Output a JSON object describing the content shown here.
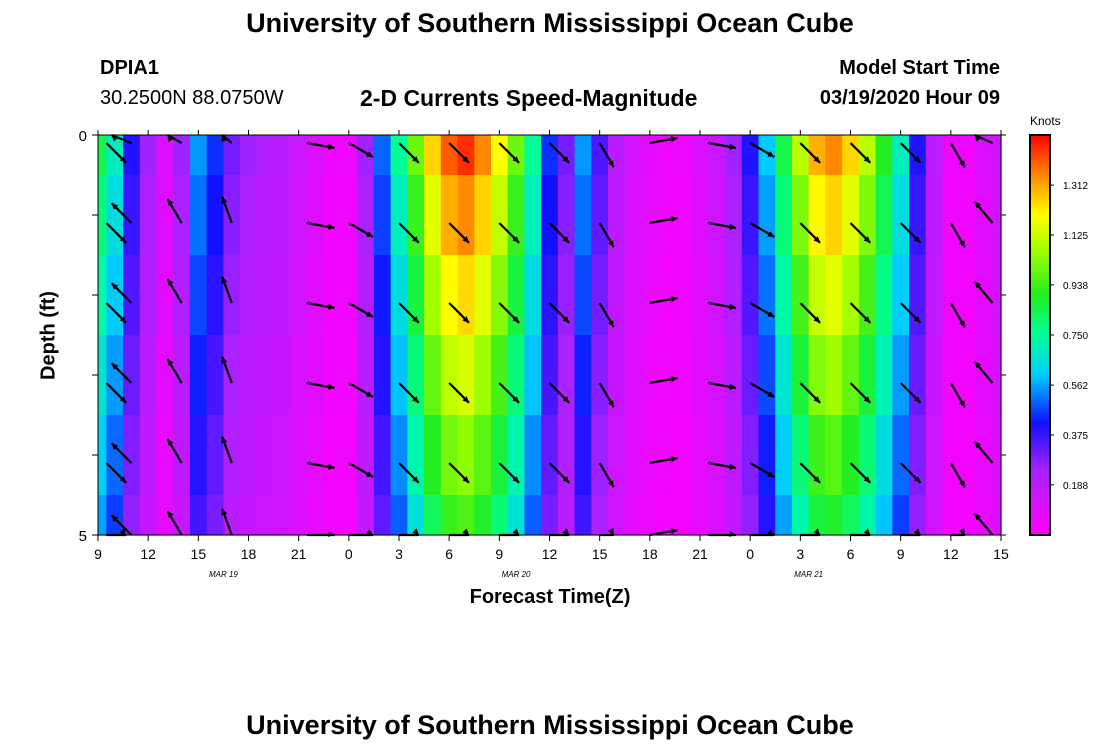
{
  "header": {
    "title": "University of Southern Mississippi Ocean Cube",
    "station": "DPIA1",
    "location": "30.2500N 88.0750W",
    "subtitle": "2-D Currents Speed-Magnitude",
    "model_start_label": "Model Start Time",
    "model_start_value": "03/19/2020 Hour 09"
  },
  "footer": {
    "title": "University of Southern Mississippi Ocean Cube"
  },
  "chart_data": {
    "type": "heatmap",
    "xlabel": "Forecast Time(Z)",
    "ylabel": "Depth (ft)",
    "colorbar_label": "Knots",
    "x_tick_labels": [
      "9",
      "12",
      "15",
      "18",
      "21",
      "0",
      "3",
      "6",
      "9",
      "12",
      "15",
      "18",
      "21",
      "0",
      "3",
      "6",
      "9",
      "12",
      "15"
    ],
    "date_labels": [
      {
        "text": "MAR 19",
        "hour_index": 7.5
      },
      {
        "text": "MAR 20",
        "hour_index": 25
      },
      {
        "text": "MAR 21",
        "hour_index": 42.5
      }
    ],
    "x_range_hours": [
      9,
      63
    ],
    "y_tick_labels": [
      "0",
      "5"
    ],
    "ylim": [
      0,
      5
    ],
    "depth_levels_ft": [
      0.25,
      1.25,
      2.25,
      3.25,
      4.25,
      4.75
    ],
    "colorbar_ticks": [
      "0.188",
      "0.375",
      "0.562",
      "0.750",
      "0.938",
      "1.125",
      "1.312"
    ],
    "colorbar_range": [
      0,
      1.5
    ],
    "speed_profile": {
      "hours": [
        9,
        10,
        11,
        12,
        13,
        14,
        15,
        16,
        17,
        18,
        19,
        20,
        21,
        22,
        23,
        24,
        25,
        26,
        27,
        28,
        29,
        30,
        31,
        32,
        33,
        34,
        35,
        36,
        37,
        38,
        39,
        40,
        41,
        42,
        43,
        44,
        45,
        46,
        47,
        48,
        49,
        50,
        51,
        52,
        53,
        54,
        55,
        56,
        57,
        58,
        59,
        60,
        61,
        62,
        63
      ],
      "speed_knots": [
        0.85,
        0.7,
        0.4,
        0.25,
        0.1,
        0.25,
        0.55,
        0.45,
        0.3,
        0.25,
        0.22,
        0.2,
        0.15,
        0.1,
        0.05,
        0.05,
        0.25,
        0.5,
        0.75,
        1.0,
        1.25,
        1.4,
        1.45,
        1.35,
        1.2,
        1.0,
        0.75,
        0.45,
        0.3,
        0.55,
        0.35,
        0.2,
        0.12,
        0.08,
        0.05,
        0.05,
        0.1,
        0.15,
        0.25,
        0.4,
        0.6,
        0.85,
        1.1,
        1.3,
        1.35,
        1.25,
        1.1,
        0.9,
        0.7,
        0.4,
        0.2,
        0.05,
        0.05,
        0.1,
        0.15
      ],
      "depth_factor": [
        1.0,
        0.93,
        0.86,
        0.79,
        0.72,
        0.66
      ]
    },
    "arrows": {
      "hours": [
        9.5,
        11,
        14,
        17,
        21.5,
        24,
        27,
        30,
        33,
        36,
        39,
        42,
        45.5,
        48,
        51,
        54,
        57,
        60,
        62.5
      ],
      "direction_deg": [
        135,
        315,
        330,
        340,
        100,
        120,
        135,
        135,
        135,
        135,
        150,
        80,
        100,
        120,
        135,
        135,
        135,
        150,
        320
      ]
    }
  }
}
